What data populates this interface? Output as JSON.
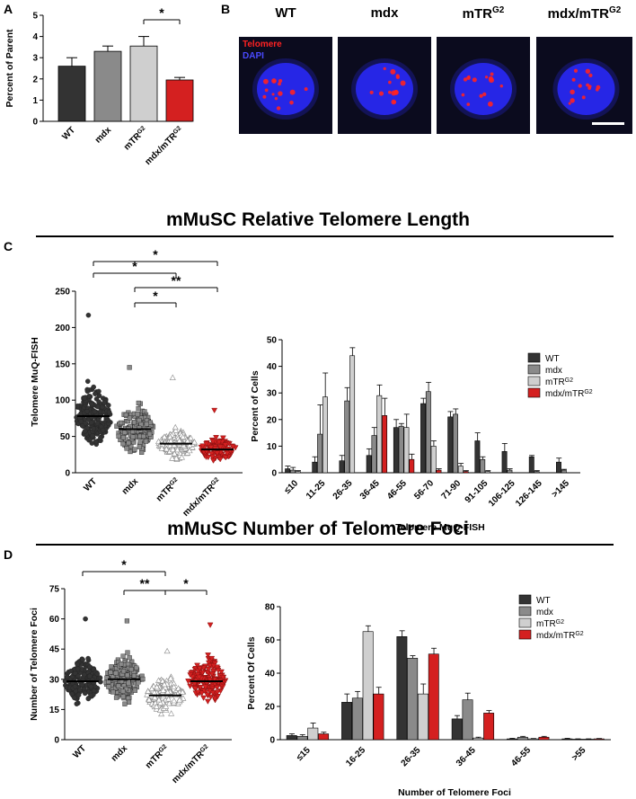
{
  "panel_labels": {
    "a": "A",
    "b": "B",
    "c": "C",
    "d": "D"
  },
  "section_titles": {
    "c": "mMuSC Relative Telomere Length",
    "d": "mMuSC Number of Telomere Foci"
  },
  "panel_b": {
    "labels": [
      "WT",
      "mdx",
      "mTR",
      "mdx/mTR"
    ],
    "superscripts": [
      "",
      "",
      "G2",
      "G2"
    ],
    "legend_telomere": "Telomere",
    "legend_dapi": "DAPI",
    "colors": {
      "telomere": "#ff2222",
      "dapi": "#2a2aff"
    }
  },
  "colors": {
    "WT": "#333333",
    "mdx": "#8a8a8a",
    "mTRG2": "#cfcfcf",
    "mdx_mTRG2": "#d42020"
  },
  "chart_data": [
    {
      "id": "A",
      "type": "bar",
      "categories": [
        "WT",
        "mdx",
        "mTR",
        "mdx/mTR"
      ],
      "category_superscripts": [
        "",
        "",
        "G2",
        "G2"
      ],
      "values": [
        2.6,
        3.3,
        3.55,
        1.95
      ],
      "errors": [
        0.4,
        0.25,
        0.45,
        0.12
      ],
      "ylabel": "Percent of Parent",
      "ylim": [
        0,
        5
      ],
      "yticks": [
        0,
        1,
        2,
        3,
        4,
        5
      ],
      "significance": [
        {
          "from": 2,
          "to": 3,
          "label": "*"
        }
      ]
    },
    {
      "id": "C-scatter",
      "type": "scatter",
      "categories": [
        "WT",
        "mdx",
        "mTR",
        "mdx/mTR"
      ],
      "category_superscripts": [
        "",
        "",
        "G2",
        "G2"
      ],
      "means": [
        78,
        60,
        40,
        32
      ],
      "spread": [
        32,
        26,
        16,
        13
      ],
      "max_values": [
        217,
        145,
        131,
        86
      ],
      "n_points": [
        200,
        160,
        150,
        120
      ],
      "ylabel": "Telomere MuQ-FISH",
      "ylim": [
        0,
        250
      ],
      "yticks": [
        0,
        50,
        100,
        150,
        200,
        250
      ],
      "significance": [
        {
          "from": 0,
          "to": 3,
          "label": "*"
        },
        {
          "from": 0,
          "to": 2,
          "label": "*"
        },
        {
          "from": 1,
          "to": 3,
          "label": "**"
        },
        {
          "from": 1,
          "to": 2,
          "label": "*"
        }
      ]
    },
    {
      "id": "C-histogram",
      "type": "bar",
      "categories": [
        "≤10",
        "11-25",
        "26-35",
        "36-45",
        "46-55",
        "56-70",
        "71-90",
        "91-105",
        "106-125",
        "126-145",
        ">145"
      ],
      "series": [
        {
          "name": "WT",
          "values": [
            1.5,
            4,
            4.5,
            6.5,
            17,
            26,
            21,
            12,
            8,
            6,
            4
          ],
          "errors": [
            1,
            2,
            2,
            2.5,
            3,
            2,
            2,
            3,
            3,
            0.5,
            1.5
          ]
        },
        {
          "name": "mdx",
          "values": [
            1,
            14.5,
            27,
            14,
            17.5,
            30.5,
            22,
            5,
            1,
            0.5,
            1
          ],
          "errors": [
            1,
            11,
            5,
            3,
            1,
            3.5,
            2,
            1,
            0.5,
            0.3,
            0.3
          ]
        },
        {
          "name": "mTR",
          "name_sup": "G2",
          "values": [
            0.5,
            28.5,
            44,
            29,
            17,
            10,
            2.5,
            0.5,
            0,
            0,
            0
          ],
          "errors": [
            0.3,
            9,
            3,
            4,
            5,
            2,
            1,
            0.3,
            0,
            0,
            0
          ]
        },
        {
          "name": "mdx/mTR",
          "name_sup": "G2",
          "values": [
            0,
            0,
            0,
            21.5,
            5,
            1,
            0.5,
            0,
            0,
            0,
            0
          ],
          "errors": [
            0,
            0,
            0,
            6.5,
            2,
            0.5,
            0.3,
            0,
            0,
            0,
            0
          ]
        }
      ],
      "xlabel": "Telomere MuQ-FISH",
      "ylabel": "Percent of Cells",
      "ylim": [
        0,
        50
      ],
      "yticks": [
        0,
        10,
        20,
        30,
        40,
        50
      ]
    },
    {
      "id": "D-scatter",
      "type": "scatter",
      "categories": [
        "WT",
        "mdx",
        "mTR",
        "mdx/mTR"
      ],
      "category_superscripts": [
        "",
        "",
        "G2",
        "G2"
      ],
      "means": [
        29,
        30,
        22,
        29
      ],
      "spread": [
        8,
        9,
        7,
        9
      ],
      "max_values": [
        60,
        59,
        44,
        57
      ],
      "n_points": [
        180,
        170,
        130,
        170
      ],
      "ylabel": "Number of Telomere Foci",
      "ylim": [
        0,
        75
      ],
      "yticks": [
        0,
        15,
        30,
        45,
        60,
        75
      ],
      "significance": [
        {
          "from": 0,
          "to": 2,
          "label": "*"
        },
        {
          "from": 1,
          "to": 2,
          "label": "**"
        },
        {
          "from": 2,
          "to": 3,
          "label": "*"
        }
      ]
    },
    {
      "id": "D-histogram",
      "type": "bar",
      "categories": [
        "≤15",
        "16-25",
        "26-35",
        "36-45",
        "46-55",
        ">55"
      ],
      "series": [
        {
          "name": "WT",
          "values": [
            2.5,
            22.5,
            62,
            12.5,
            0.5,
            0.5
          ],
          "errors": [
            1,
            5,
            3.5,
            2,
            0.3,
            0.3
          ]
        },
        {
          "name": "mdx",
          "values": [
            2,
            25,
            49,
            24,
            1.5,
            0.3
          ],
          "errors": [
            1,
            4,
            1.5,
            4,
            0.5,
            0.2
          ]
        },
        {
          "name": "mTR",
          "name_sup": "G2",
          "values": [
            7,
            65,
            27.5,
            1,
            0.5,
            0.3
          ],
          "errors": [
            3,
            3.5,
            6,
            0.5,
            0.2,
            0.2
          ]
        },
        {
          "name": "mdx/mTR",
          "name_sup": "G2",
          "values": [
            3.5,
            27.5,
            51.5,
            16,
            1.5,
            0.5
          ],
          "errors": [
            1,
            4,
            3.5,
            1.5,
            0.5,
            0.2
          ]
        }
      ],
      "xlabel": "Number of Telomere Foci",
      "ylabel": "Percent Of Cells",
      "ylim": [
        0,
        80
      ],
      "yticks": [
        0,
        20,
        40,
        60,
        80
      ]
    }
  ]
}
